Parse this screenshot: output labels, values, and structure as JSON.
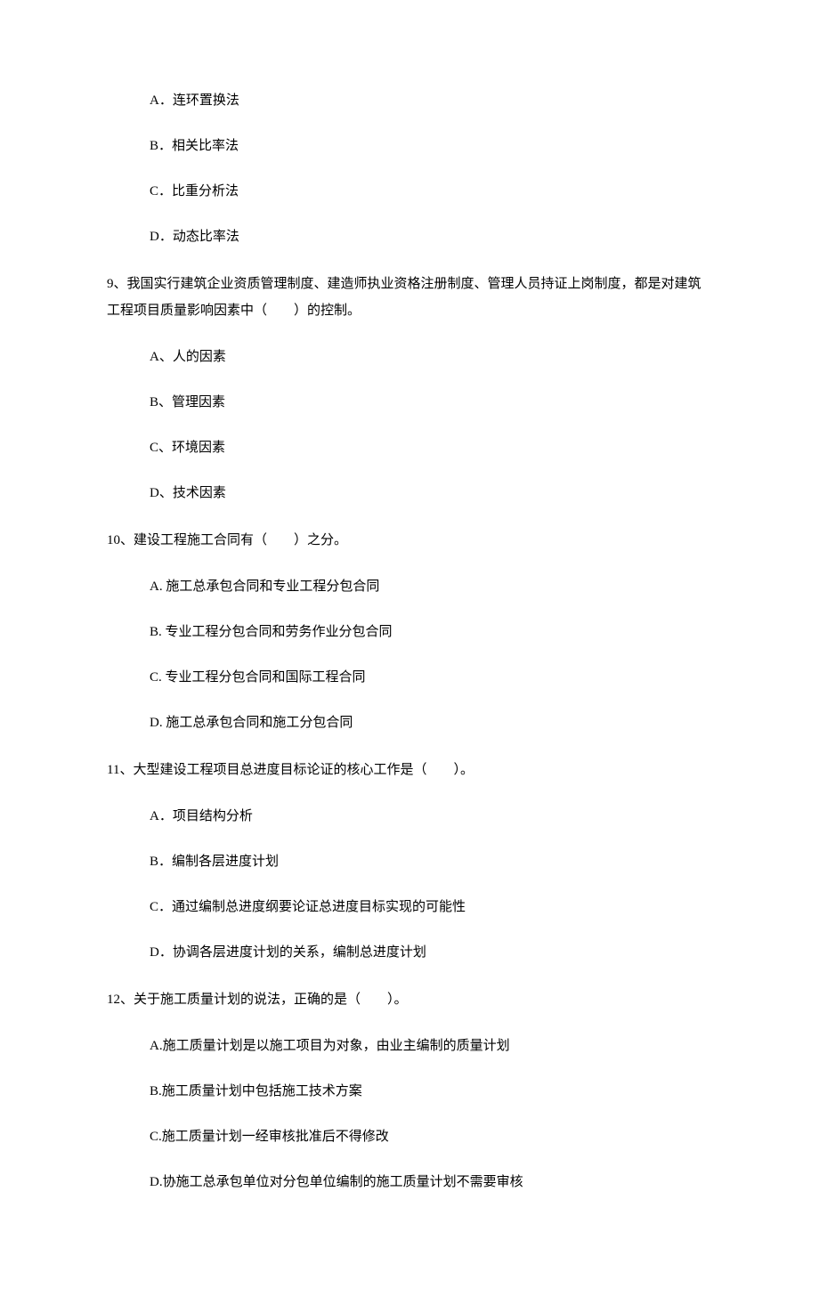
{
  "q8_options": {
    "a": "A．连环置换法",
    "b": "B．相关比率法",
    "c": "C．比重分析法",
    "d": "D．动态比率法"
  },
  "q9": {
    "text": "9、我国实行建筑企业资质管理制度、建造师执业资格注册制度、管理人员持证上岗制度，都是对建筑工程项目质量影响因素中（　　）的控制。",
    "a": "A、人的因素",
    "b": "B、管理因素",
    "c": "C、环境因素",
    "d": "D、技术因素"
  },
  "q10": {
    "text": "10、建设工程施工合同有（　　）之分。",
    "a": "A.  施工总承包合同和专业工程分包合同",
    "b": "B.  专业工程分包合同和劳务作业分包合同",
    "c": "C.  专业工程分包合同和国际工程合同",
    "d": "D.  施工总承包合同和施工分包合同"
  },
  "q11": {
    "text": "11、大型建设工程项目总进度目标论证的核心工作是（　　）。",
    "a": "A．项目结构分析",
    "b": "B．编制各层进度计划",
    "c": "C．通过编制总进度纲要论证总进度目标实现的可能性",
    "d": "D．协调各层进度计划的关系，编制总进度计划"
  },
  "q12": {
    "text": "12、关于施工质量计划的说法，正确的是（　　）。",
    "a": "A.施工质量计划是以施工项目为对象，由业主编制的质量计划",
    "b": "B.施工质量计划中包括施工技术方案",
    "c": "C.施工质量计划一经审核批准后不得修改",
    "d": "D.协施工总承包单位对分包单位编制的施工质量计划不需要审核"
  }
}
